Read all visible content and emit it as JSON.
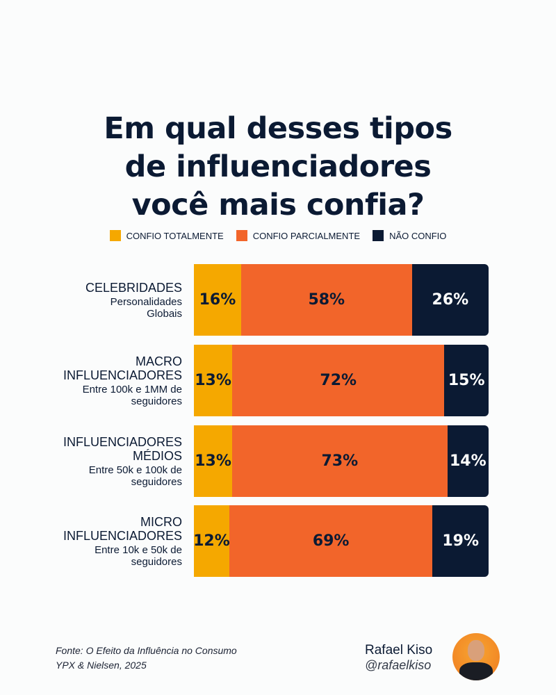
{
  "title_lines": [
    "Em qual desses tipos",
    "de influenciadores",
    "você mais confia?"
  ],
  "chart_data": {
    "type": "bar",
    "orientation": "horizontal",
    "stacked": true,
    "title": "Em qual desses tipos de influenciadores você mais confia?",
    "legend_position": "top",
    "categories": [
      {
        "main": "CELEBRIDADES",
        "sub": "Personalidades\nGlobais"
      },
      {
        "main": "MACRO\nINFLUENCIADORES",
        "sub": "Entre 100k e 1MM de\nseguidores"
      },
      {
        "main": "INFLUENCIADORES\nMÉDIOS",
        "sub": "Entre 50k e 100k de\nseguidores"
      },
      {
        "main": "MICRO\nINFLUENCIADORES",
        "sub": "Entre 10k e 50k de\nseguidores"
      }
    ],
    "series": [
      {
        "name": "CONFIO TOTALMENTE",
        "color": "#f5a800",
        "text_color": "#0b1a33",
        "values": [
          16,
          13,
          13,
          12
        ]
      },
      {
        "name": "CONFIO PARCIALMENTE",
        "color": "#f2652a",
        "text_color": "#0b1a33",
        "values": [
          58,
          72,
          73,
          69
        ]
      },
      {
        "name": "NÃO CONFIO",
        "color": "#0b1a33",
        "text_color": "#ffffff",
        "values": [
          26,
          15,
          14,
          19
        ]
      }
    ],
    "unit": "%",
    "xlim": [
      0,
      100
    ]
  },
  "footer": {
    "source_line1": "Fonte: O Efeito da Influência no Consumo",
    "source_line2": "YPX & Nielsen, 2025",
    "author_name": "Rafael Kiso",
    "author_handle": "@rafaelkiso"
  }
}
